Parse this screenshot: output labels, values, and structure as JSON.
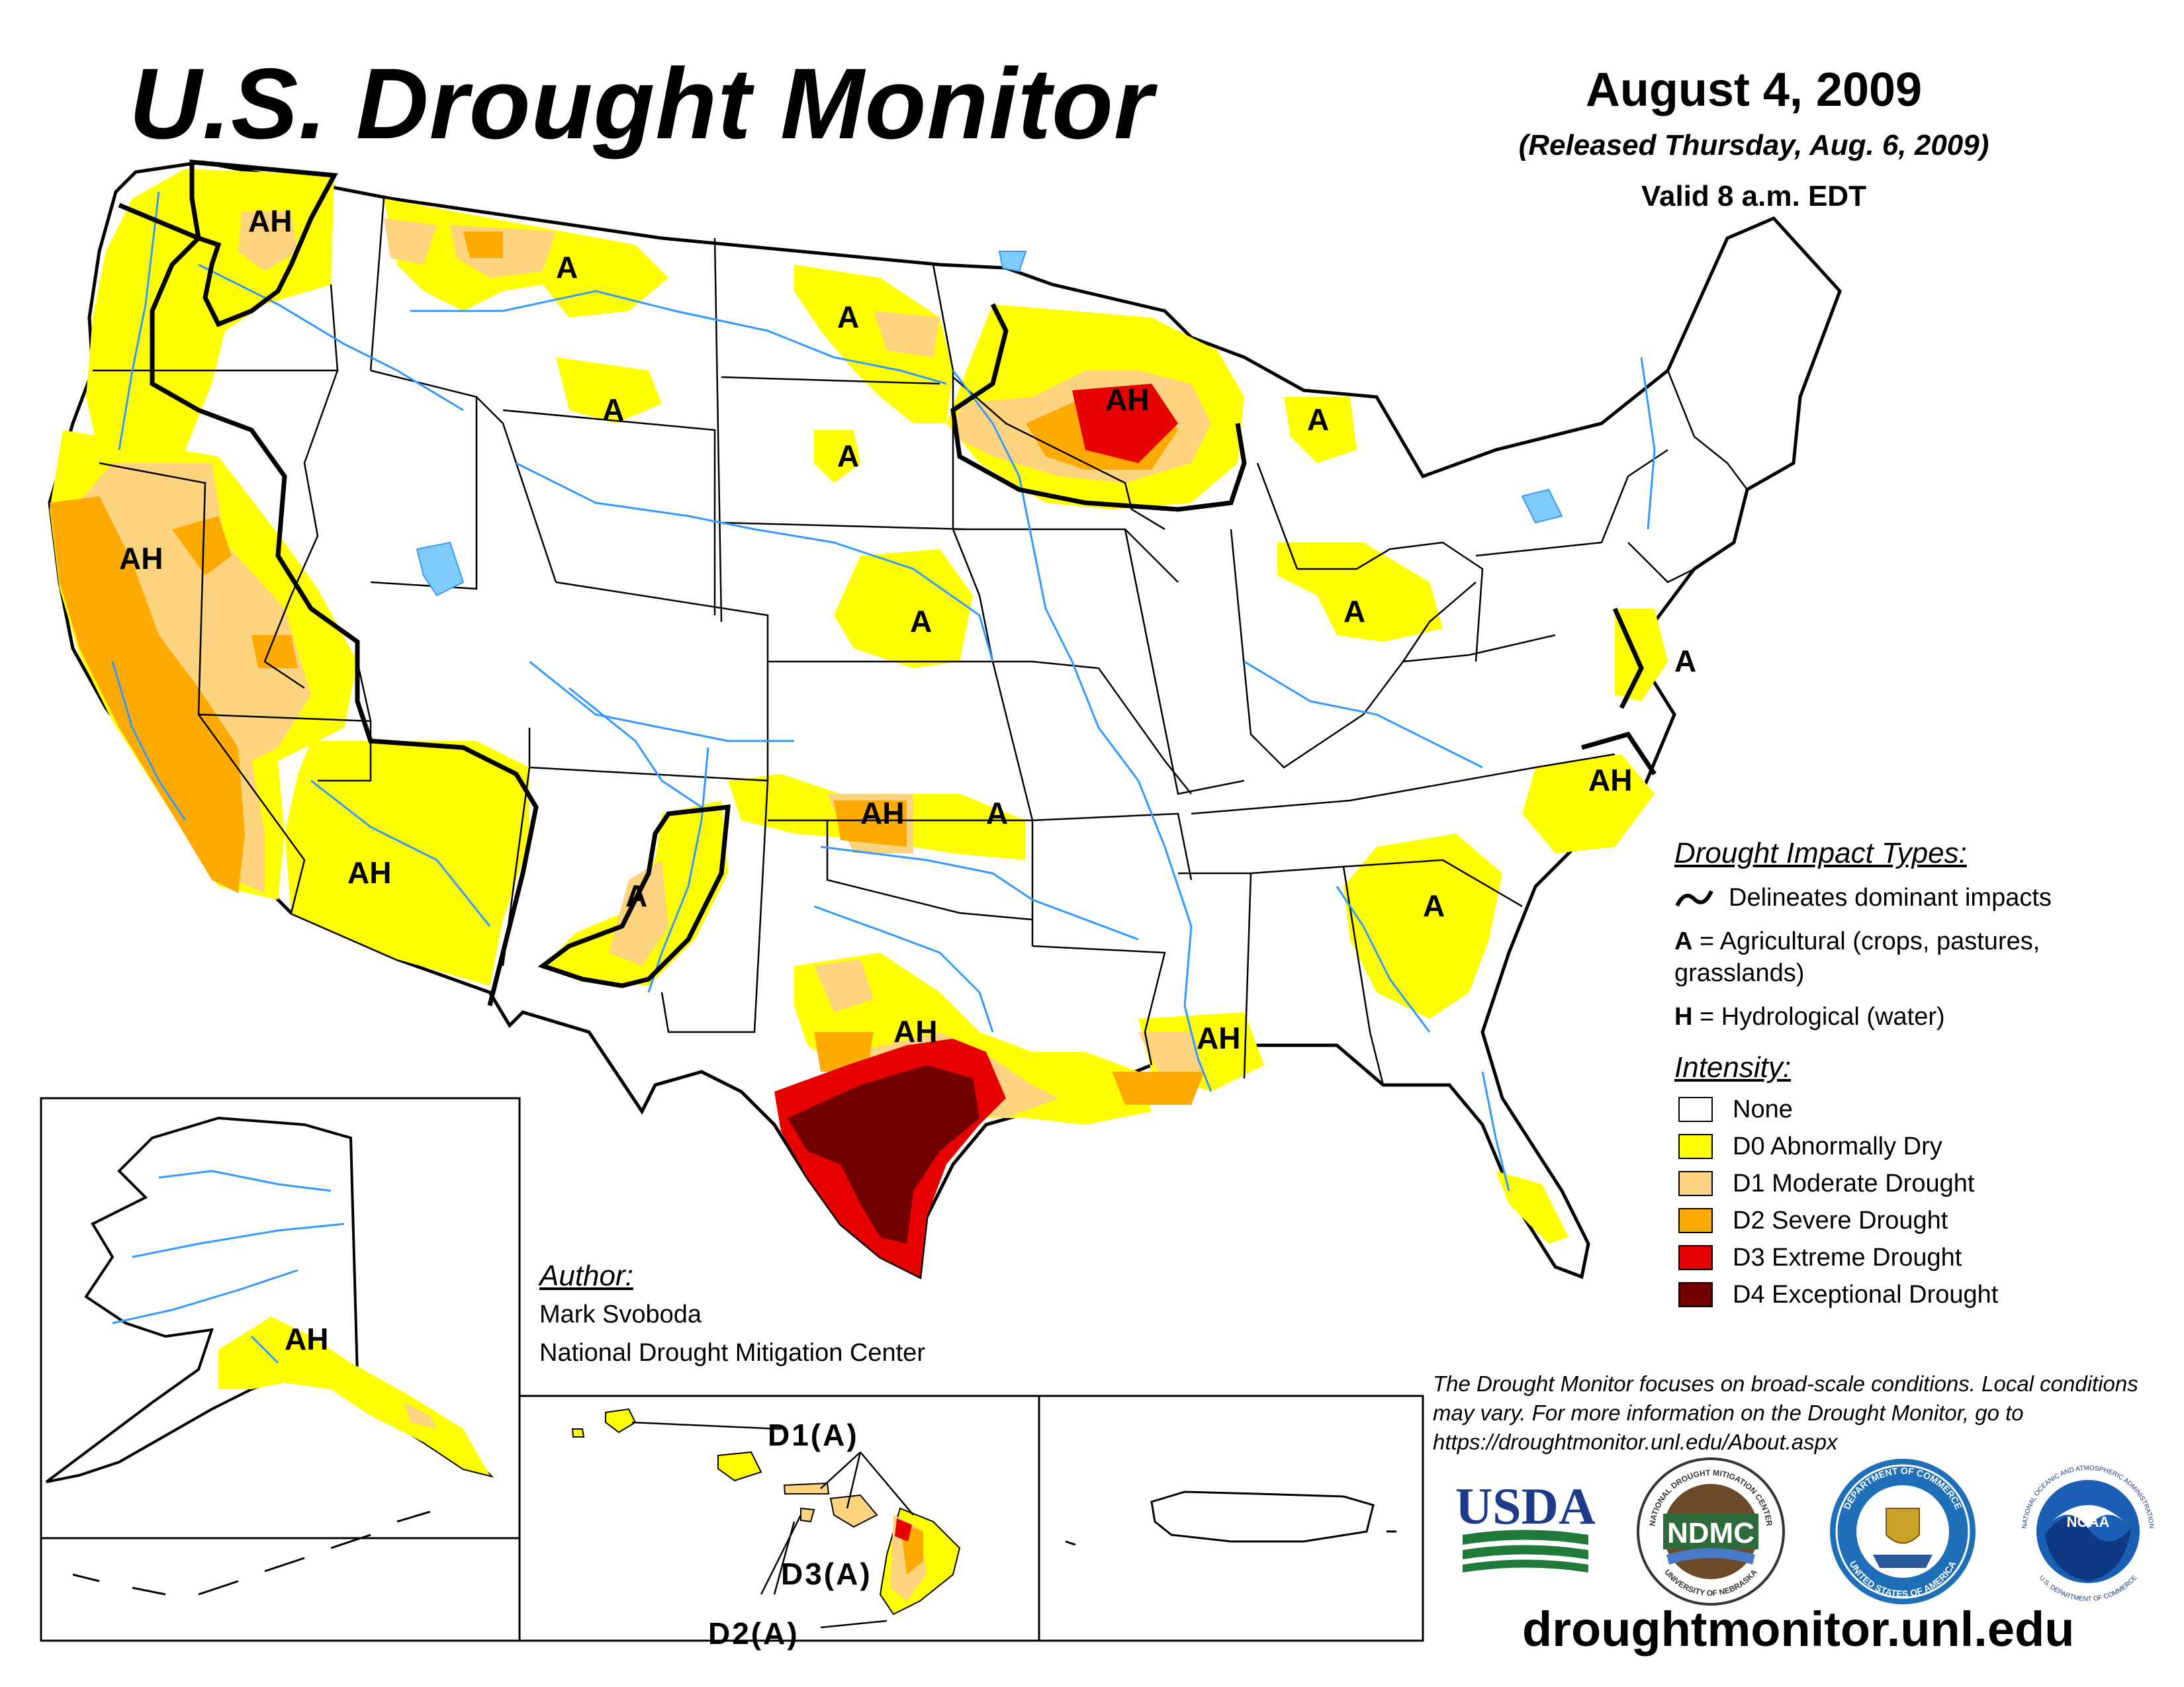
{
  "title": "U.S. Drought Monitor",
  "date": "August 4, 2009",
  "released": "(Released Thursday, Aug. 6, 2009)",
  "valid": "Valid 8 a.m. EDT",
  "map_labels": {
    "wa": "AH",
    "mt": "A",
    "nd": "A",
    "wy": "A",
    "sd": "A",
    "ne": "A",
    "mn": "AH",
    "mi": "A",
    "oh": "A",
    "md": "A",
    "ca": "AH",
    "az": "AH",
    "nm": "A",
    "ok": "AH",
    "ok2": "A",
    "nc": "AH",
    "ga": "A",
    "tx": "AH",
    "la": "AH",
    "ak": "AH"
  },
  "hawaii_labels": {
    "d1": "D1(A)",
    "d3": "D3(A)",
    "d2": "D2(A)"
  },
  "legend": {
    "impact_title": "Drought Impact Types:",
    "delineates": "Delineates dominant impacts",
    "ag_key": "A",
    "ag_text": " = Agricultural (crops, pastures, grasslands)",
    "hyd_key": "H",
    "hyd_text": " = Hydrological (water)",
    "intensity_title": "Intensity:",
    "items": [
      {
        "label": "None",
        "color": "#ffffff"
      },
      {
        "label": "D0 Abnormally Dry",
        "color": "#ffff00"
      },
      {
        "label": "D1 Moderate Drought",
        "color": "#fcd37f"
      },
      {
        "label": "D2 Severe Drought",
        "color": "#ffaa00"
      },
      {
        "label": "D3 Extreme Drought",
        "color": "#e60000"
      },
      {
        "label": "D4 Exceptional Drought",
        "color": "#730000"
      }
    ]
  },
  "author": {
    "heading": "Author:",
    "name": "Mark Svoboda",
    "org": "National Drought Mitigation Center"
  },
  "note": "The Drought Monitor focuses on broad-scale conditions. Local conditions may vary. For more information on the Drought Monitor, go to https://droughtmonitor.unl.edu/About.aspx",
  "logos": {
    "usda": "USDA",
    "ndmc": "NDMC",
    "ndmc_ring": "NATIONAL DROUGHT MITIGATION CENTER",
    "ndmc_bottom": "UNIVERSITY OF NEBRASKA",
    "doc_ring": "DEPARTMENT OF COMMERCE",
    "doc_bottom": "UNITED STATES OF AMERICA",
    "noaa": "NOAA",
    "noaa_ring": "NATIONAL OCEANIC AND ATMOSPHERIC ADMINISTRATION",
    "noaa_bottom": "U.S. DEPARTMENT OF COMMERCE"
  },
  "url": "droughtmonitor.unl.edu"
}
